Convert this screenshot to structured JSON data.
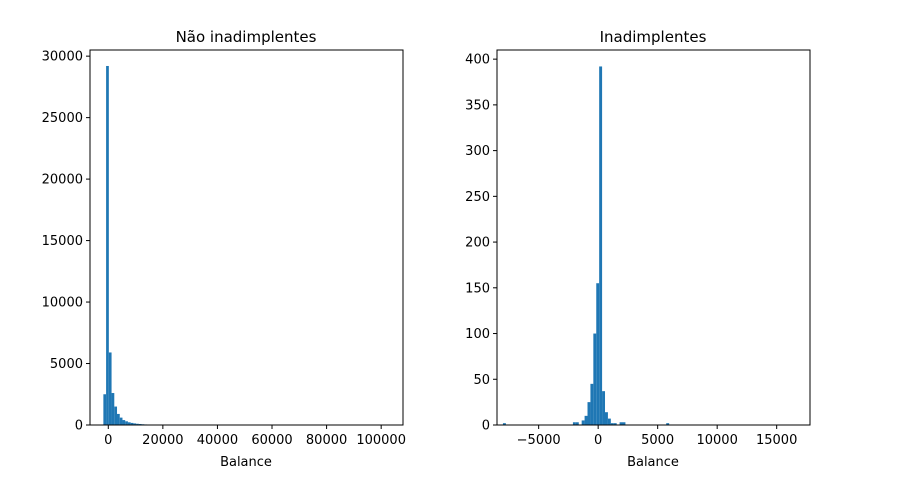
{
  "chart_data": [
    {
      "type": "bar",
      "title": "Não inadimplentes",
      "xlabel": "Balance",
      "ylabel": "",
      "bar_color": "#1f77b4",
      "grid": false,
      "xlim": [
        -6700,
        108000
      ],
      "ylim": [
        0,
        30500
      ],
      "xticks": [
        0,
        20000,
        40000,
        60000,
        80000,
        100000
      ],
      "yticks": [
        0,
        5000,
        10000,
        15000,
        20000,
        25000,
        30000
      ],
      "bin_start": -1800,
      "bin_width": 1000,
      "values": [
        2500,
        29200,
        5900,
        2600,
        1500,
        900,
        600,
        400,
        300,
        220,
        170,
        130,
        100,
        80,
        60,
        45,
        35,
        25,
        20,
        15
      ]
    },
    {
      "type": "bar",
      "title": "Inadimplentes",
      "xlabel": "Balance",
      "ylabel": "",
      "bar_color": "#1f77b4",
      "grid": false,
      "xlim": [
        -8500,
        17800
      ],
      "ylim": [
        0,
        410
      ],
      "xticks": [
        -5000,
        0,
        5000,
        10000,
        15000
      ],
      "yticks": [
        0,
        50,
        100,
        150,
        200,
        250,
        300,
        350,
        400
      ],
      "bin_start": -8000,
      "bin_width": 245,
      "values": [
        2,
        0,
        0,
        0,
        0,
        0,
        0,
        0,
        0,
        0,
        0,
        0,
        0,
        0,
        0,
        0,
        0,
        0,
        0,
        0,
        0,
        0,
        0,
        0,
        3,
        3,
        0,
        5,
        10,
        25,
        45,
        100,
        155,
        392,
        37,
        14,
        7,
        2,
        2,
        0,
        3,
        3,
        0,
        0,
        0,
        0,
        0,
        0,
        0,
        0,
        0,
        0,
        0,
        0,
        0,
        0,
        2,
        0,
        0,
        0,
        0,
        0,
        0,
        0,
        0,
        0,
        0,
        0,
        0,
        0,
        0,
        0,
        0,
        0,
        0,
        0,
        0,
        0,
        0,
        0,
        0,
        0,
        0,
        0,
        0,
        0,
        0,
        0,
        0,
        0,
        0,
        0,
        0,
        0,
        0,
        0,
        0,
        0,
        0,
        0
      ]
    }
  ]
}
